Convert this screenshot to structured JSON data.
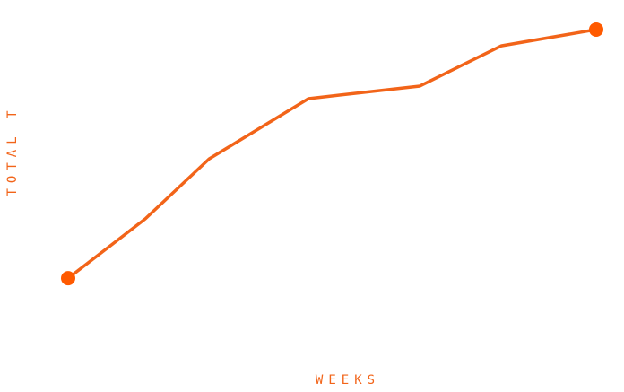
{
  "chart_data": {
    "type": "line",
    "x_label": "WEEKS",
    "y_label": "TOTAL T",
    "x": [
      0,
      1.46,
      2.67,
      4.55,
      6.66,
      8.2,
      10
    ],
    "series": [
      {
        "color": "#f26419",
        "values": [
          17.1,
          36,
          55.1,
          74.3,
          78.3,
          91.1,
          96.3
        ]
      }
    ],
    "marker_color": "#ff5a00",
    "xlim": [
      0,
      10
    ],
    "ylim": [
      0,
      100
    ]
  }
}
